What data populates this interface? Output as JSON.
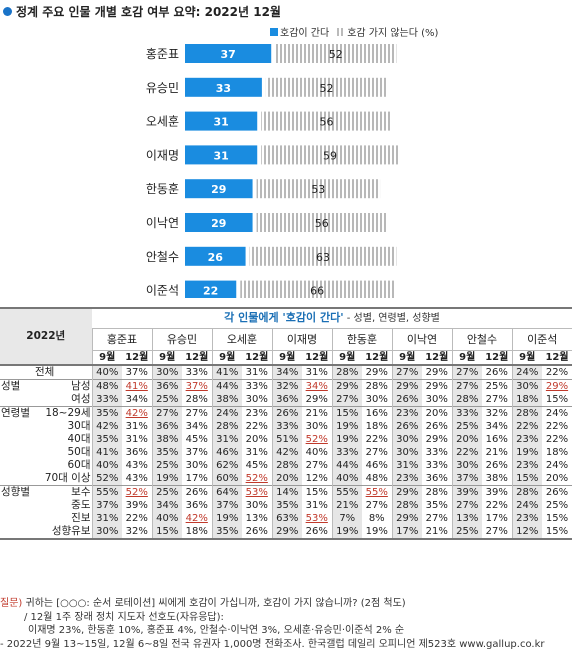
{
  "title": "정계 주요 인물 개별 호감 여부 요약: 2022년 12월",
  "legend": {
    "positive": "호감이 간다",
    "negative": "호감 가지 않는다 (%)"
  },
  "colors": {
    "accent": "#1a8ce0",
    "hatch": "#bbbbbb",
    "header_text": "#1a6fb5",
    "highlight": "#c0392b"
  },
  "chart_data": [
    {
      "type": "bar",
      "title": "정계 주요 인물 개별 호감 여부 요약: 2022년 12월",
      "categories": [
        "홍준표",
        "유승민",
        "오세훈",
        "이재명",
        "한동훈",
        "이낙연",
        "안철수",
        "이준석"
      ],
      "series": [
        {
          "name": "호감이 간다",
          "values": [
            37,
            33,
            31,
            31,
            29,
            29,
            26,
            22
          ]
        },
        {
          "name": "호감 가지 않는다 (%)",
          "values": [
            52,
            52,
            56,
            59,
            53,
            56,
            63,
            66
          ]
        }
      ],
      "xlim": [
        0,
        100
      ]
    },
    {
      "type": "table",
      "year_label": "2022년",
      "header": {
        "title": "각 인물에게 '호감이 간다'",
        "subtitle": " - 성별, 연령별, 성향별"
      },
      "names": [
        "홍준표",
        "유승민",
        "오세훈",
        "이재명",
        "한동훈",
        "이낙연",
        "안철수",
        "이준석"
      ],
      "months": [
        "9월",
        "12월"
      ],
      "rows": [
        {
          "g1": "전체",
          "g2": "",
          "vals": [
            "40%",
            "37%",
            "30%",
            "33%",
            "41%",
            "31%",
            "34%",
            "31%",
            "28%",
            "29%",
            "27%",
            "29%",
            "27%",
            "26%",
            "24%",
            "22%"
          ],
          "ul": []
        },
        {
          "g1": "성별",
          "g2": "남성",
          "vals": [
            "48%",
            "41%",
            "36%",
            "37%",
            "44%",
            "33%",
            "32%",
            "34%",
            "29%",
            "28%",
            "29%",
            "29%",
            "27%",
            "25%",
            "30%",
            "29%"
          ],
          "ul": [
            1,
            3,
            7,
            15
          ]
        },
        {
          "g1": "",
          "g2": "여성",
          "vals": [
            "33%",
            "34%",
            "25%",
            "28%",
            "38%",
            "30%",
            "36%",
            "29%",
            "27%",
            "30%",
            "26%",
            "30%",
            "28%",
            "27%",
            "18%",
            "15%"
          ],
          "ul": []
        },
        {
          "g1": "연령별",
          "g2": "18~29세",
          "vals": [
            "35%",
            "42%",
            "27%",
            "27%",
            "24%",
            "23%",
            "26%",
            "21%",
            "15%",
            "16%",
            "23%",
            "20%",
            "33%",
            "32%",
            "28%",
            "24%"
          ],
          "ul": [
            1
          ]
        },
        {
          "g1": "",
          "g2": "30대",
          "vals": [
            "42%",
            "31%",
            "36%",
            "34%",
            "28%",
            "22%",
            "33%",
            "30%",
            "19%",
            "18%",
            "26%",
            "26%",
            "25%",
            "34%",
            "22%",
            "22%"
          ],
          "ul": []
        },
        {
          "g1": "",
          "g2": "40대",
          "vals": [
            "35%",
            "31%",
            "38%",
            "45%",
            "31%",
            "20%",
            "51%",
            "52%",
            "19%",
            "22%",
            "30%",
            "29%",
            "20%",
            "16%",
            "23%",
            "22%"
          ],
          "ul": [
            7
          ]
        },
        {
          "g1": "",
          "g2": "50대",
          "vals": [
            "41%",
            "36%",
            "35%",
            "37%",
            "46%",
            "31%",
            "42%",
            "40%",
            "33%",
            "27%",
            "30%",
            "33%",
            "22%",
            "21%",
            "19%",
            "18%"
          ],
          "ul": []
        },
        {
          "g1": "",
          "g2": "60대",
          "vals": [
            "40%",
            "43%",
            "25%",
            "30%",
            "62%",
            "45%",
            "28%",
            "27%",
            "44%",
            "46%",
            "31%",
            "33%",
            "30%",
            "26%",
            "23%",
            "24%"
          ],
          "ul": []
        },
        {
          "g1": "",
          "g2": "70대 이상",
          "vals": [
            "52%",
            "43%",
            "19%",
            "17%",
            "60%",
            "52%",
            "20%",
            "12%",
            "40%",
            "48%",
            "23%",
            "36%",
            "37%",
            "38%",
            "15%",
            "20%"
          ],
          "ul": [
            5
          ]
        },
        {
          "g1": "성향별",
          "g2": "보수",
          "vals": [
            "55%",
            "52%",
            "25%",
            "26%",
            "64%",
            "53%",
            "14%",
            "15%",
            "55%",
            "55%",
            "29%",
            "28%",
            "39%",
            "39%",
            "28%",
            "26%"
          ],
          "ul": [
            1,
            5,
            9
          ]
        },
        {
          "g1": "",
          "g2": "중도",
          "vals": [
            "37%",
            "39%",
            "34%",
            "36%",
            "37%",
            "30%",
            "35%",
            "31%",
            "21%",
            "27%",
            "28%",
            "35%",
            "27%",
            "22%",
            "24%",
            "25%"
          ],
          "ul": []
        },
        {
          "g1": "",
          "g2": "진보",
          "vals": [
            "31%",
            "22%",
            "40%",
            "42%",
            "19%",
            "13%",
            "63%",
            "53%",
            "7%",
            "8%",
            "29%",
            "27%",
            "13%",
            "17%",
            "23%",
            "15%"
          ],
          "ul": [
            3,
            7
          ]
        },
        {
          "g1": "",
          "g2": "성향유보",
          "vals": [
            "30%",
            "32%",
            "15%",
            "18%",
            "35%",
            "26%",
            "29%",
            "26%",
            "19%",
            "19%",
            "17%",
            "21%",
            "25%",
            "27%",
            "12%",
            "15%"
          ],
          "ul": []
        }
      ]
    }
  ],
  "footer": {
    "q_label": "질문)",
    "q_text": "귀하는 [○○○: 순서 로테이션] 씨에게 호감이 가십니까, 호감이 가지 않습니까? (2점 척도)",
    "note1": "/ 12월 1주 장래 정치 지도자 선호도(자유응답):",
    "note2": "이재명 23%, 한동훈 10%, 홍준표 4%, 안철수·이낙연 3%, 오세훈·유승민·이준석 2% 순",
    "source": "- 2022년 9월 13~15일, 12월 6~8일 전국 유권자 1,000명 전화조사. 한국갤럽 데일리 오피니언 제523호 www.gallup.co.kr"
  }
}
